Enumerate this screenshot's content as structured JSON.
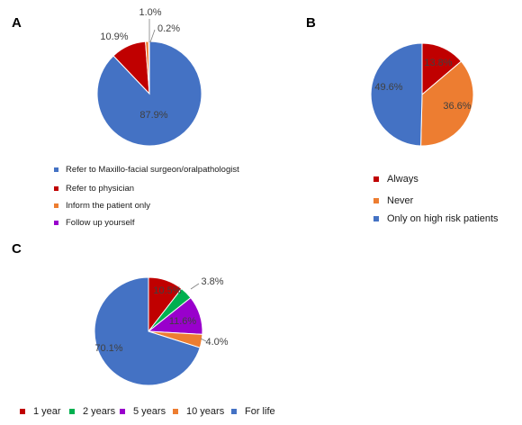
{
  "panels": [
    {
      "letter": "A",
      "chart_data": {
        "type": "pie",
        "categories": [
          "Refer to Maxillo-facial surgeon/oralpathologist",
          "Refer to physician",
          "Inform the patient only",
          "Follow up yourself"
        ],
        "values": [
          87.9,
          10.9,
          1.0,
          0.2
        ],
        "data_labels": [
          "87.9%",
          "10.9%",
          "1.0%",
          "0.2%"
        ],
        "colors": [
          "#4472C4",
          "#C00000",
          "#ED7D31",
          "#9900CC"
        ],
        "legend_position": "bottom"
      }
    },
    {
      "letter": "B",
      "chart_data": {
        "type": "pie",
        "categories": [
          "Always",
          "Never",
          "Only on high risk patients"
        ],
        "values": [
          13.8,
          36.6,
          49.6
        ],
        "data_labels": [
          "13.8%",
          "36.6%",
          "49.6%"
        ],
        "colors": [
          "#C00000",
          "#ED7D31",
          "#4472C4"
        ],
        "legend_position": "bottom"
      }
    },
    {
      "letter": "C",
      "chart_data": {
        "type": "pie",
        "categories": [
          "1 year",
          "2 years",
          "5 years",
          "10 years",
          "For life"
        ],
        "values": [
          10.5,
          3.8,
          11.6,
          4.0,
          70.1
        ],
        "data_labels": [
          "10.5%",
          "3.8%",
          "11.6%",
          "4.0%",
          "70.1%"
        ],
        "colors": [
          "#C00000",
          "#00B050",
          "#9900CC",
          "#ED7D31",
          "#4472C4"
        ],
        "legend_position": "bottom"
      }
    }
  ]
}
